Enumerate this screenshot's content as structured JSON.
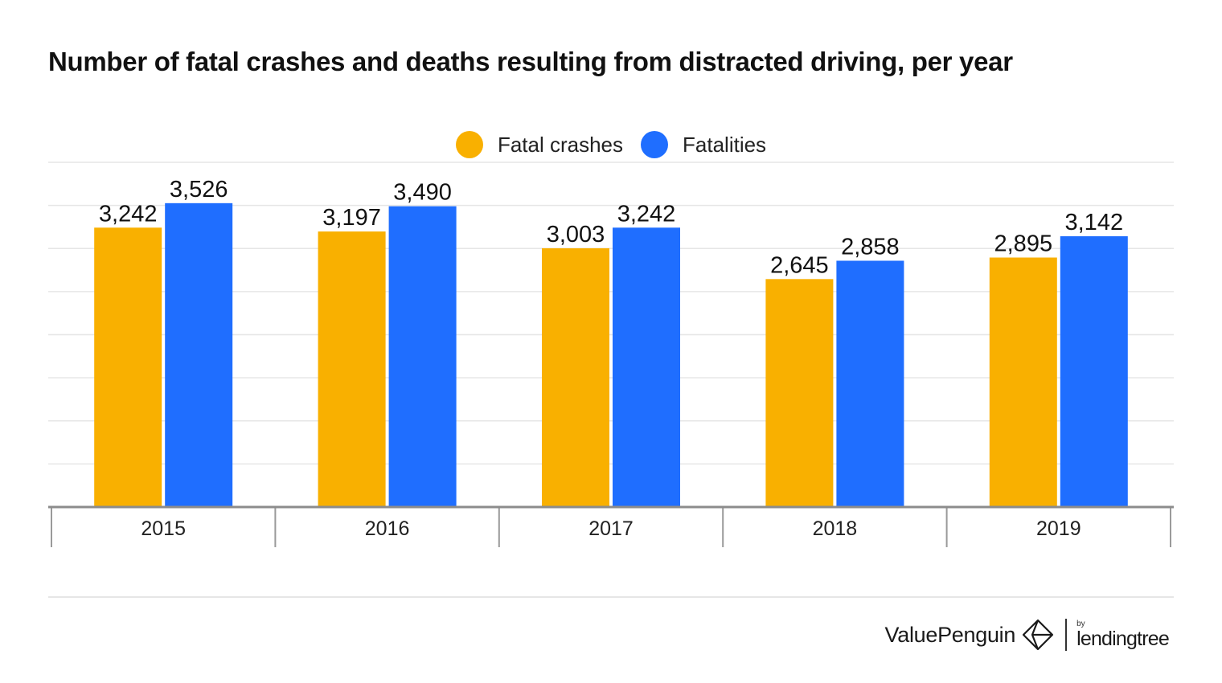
{
  "title": "Number of fatal crashes and deaths resulting from distracted driving, per year",
  "legend": {
    "items": [
      {
        "label": "Fatal crashes",
        "color": "#F9B000"
      },
      {
        "label": "Fatalities",
        "color": "#1F6EFF"
      }
    ]
  },
  "brand": {
    "valuepenguin": "ValuePenguin",
    "by": "by",
    "lendingtree": "lendingtree",
    "logo_icon": "valuepenguin-diamond-icon"
  },
  "chart_data": {
    "type": "bar",
    "title": "Number of fatal crashes and deaths resulting from distracted driving, per year",
    "xlabel": "",
    "ylabel": "",
    "categories": [
      "2015",
      "2016",
      "2017",
      "2018",
      "2019"
    ],
    "series": [
      {
        "name": "Fatal crashes",
        "color": "#F9B000",
        "values": [
          3242,
          3197,
          3003,
          2645,
          2895
        ],
        "labels": [
          "3,242",
          "3,197",
          "3,003",
          "2,645",
          "2,895"
        ]
      },
      {
        "name": "Fatalities",
        "color": "#1F6EFF",
        "values": [
          3526,
          3490,
          3242,
          2858,
          3142
        ],
        "labels": [
          "3,526",
          "3,490",
          "3,242",
          "2,858",
          "3,142"
        ]
      }
    ],
    "ylim": [
      0,
      4000
    ],
    "grid": true,
    "legend_position": "top-center"
  }
}
